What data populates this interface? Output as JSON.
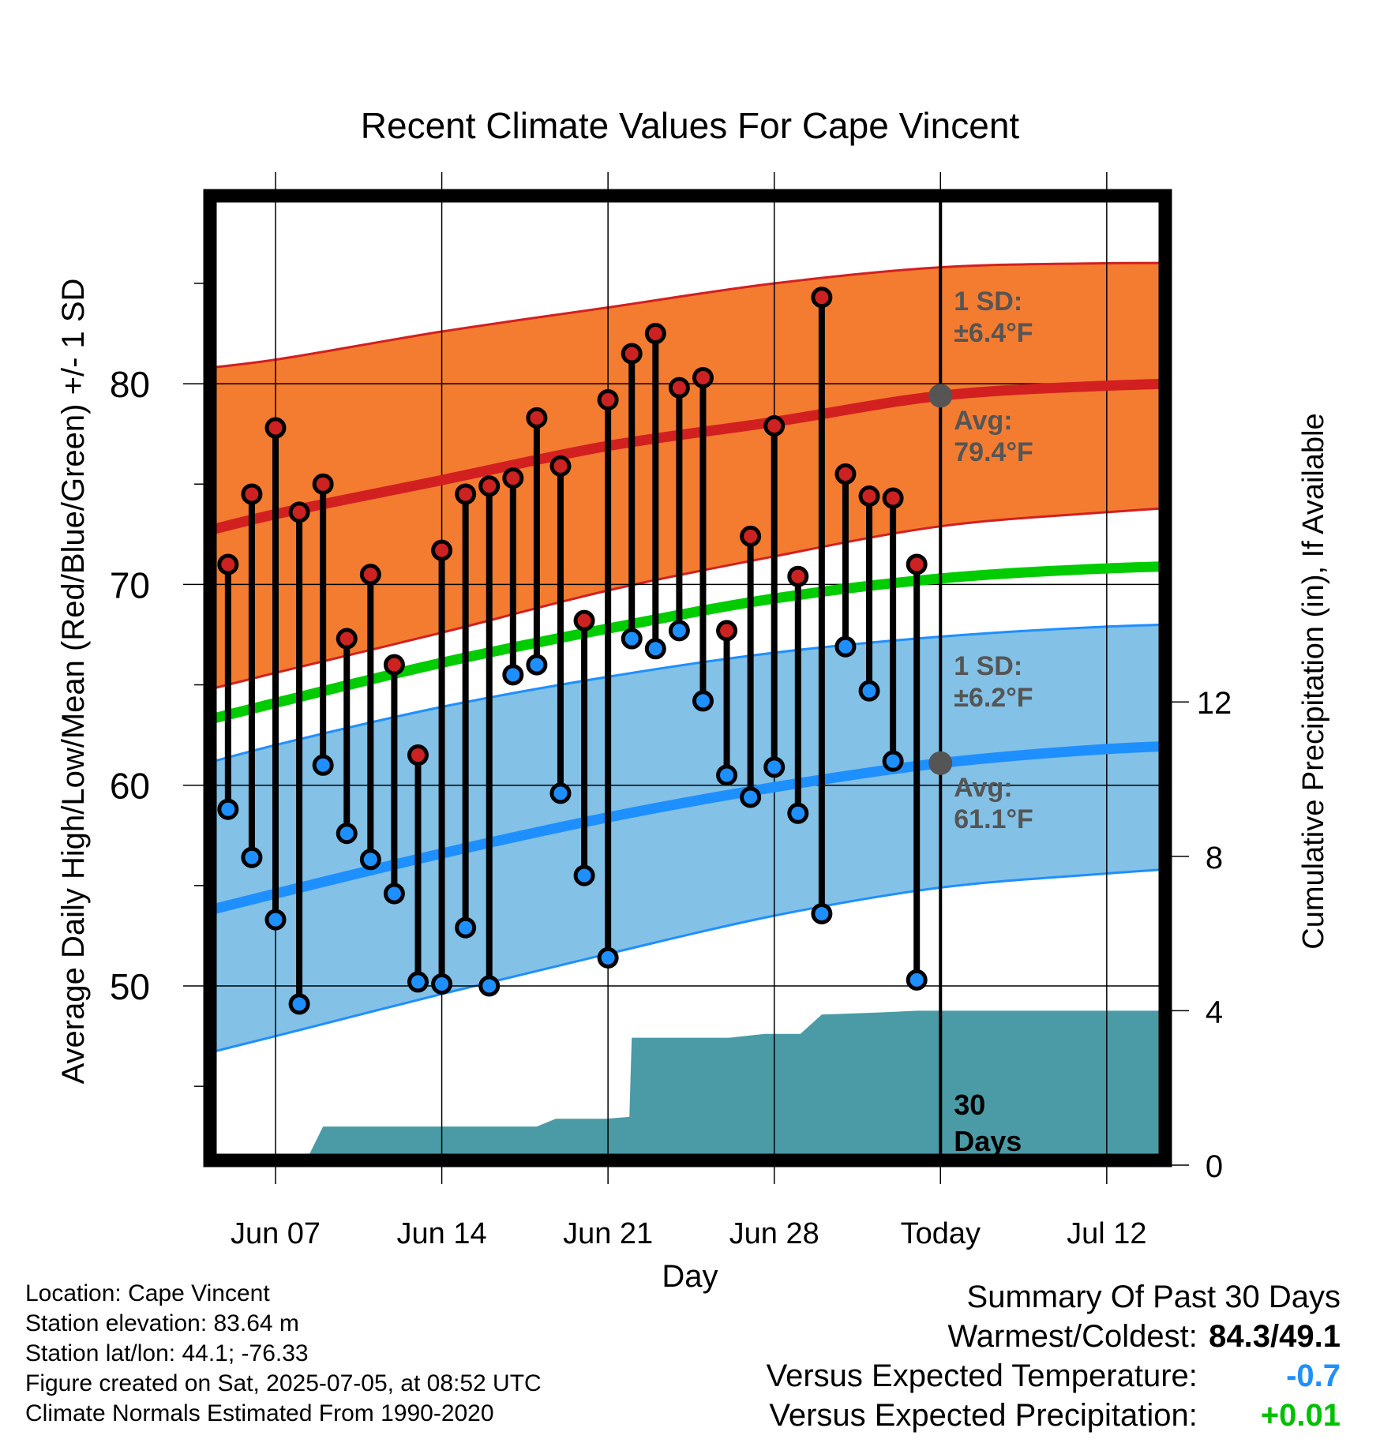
{
  "chart_data": {
    "type": "line",
    "title": "Recent Climate Values For Cape Vincent",
    "xlabel": "Day",
    "ylabel": "Average Daily High/Low/Mean (Red/Blue/Green) +/- 1 SD",
    "ylabel_right": "Cumulative Precipitation (in), If Available",
    "xlim": [
      -4.4,
      41.4
    ],
    "ylim": [
      41.0,
      89.2
    ],
    "y2lim": [
      0,
      20.0
    ],
    "xticks": [
      {
        "x": 0,
        "label": "Jun 07"
      },
      {
        "x": 7,
        "label": "Jun 14"
      },
      {
        "x": 14,
        "label": "Jun 21"
      },
      {
        "x": 21,
        "label": "Jun 28"
      },
      {
        "x": 28,
        "label": "Today"
      },
      {
        "x": 35,
        "label": "Jul 12"
      }
    ],
    "yticks": [
      50,
      60,
      70,
      80
    ],
    "y2ticks": [
      0,
      4,
      8,
      12
    ],
    "grid": true,
    "days": [
      -2,
      -1,
      0,
      1,
      2,
      3,
      4,
      5,
      6,
      7,
      8,
      9,
      10,
      11,
      12,
      13,
      14,
      15,
      16,
      17,
      18,
      19,
      20,
      21,
      22,
      23,
      24,
      25,
      26,
      27
    ],
    "daily_high": [
      71.0,
      74.5,
      77.8,
      73.6,
      75.0,
      67.3,
      70.5,
      66.0,
      61.5,
      71.7,
      74.5,
      74.9,
      75.3,
      78.3,
      75.9,
      68.2,
      79.2,
      81.5,
      82.5,
      79.8,
      80.3,
      67.7,
      72.4,
      77.9,
      70.4,
      84.3,
      75.5,
      74.4,
      74.3,
      71.0
    ],
    "daily_low": [
      58.8,
      56.4,
      53.3,
      49.1,
      61.0,
      57.6,
      56.3,
      54.6,
      50.2,
      50.1,
      52.9,
      50.0,
      65.5,
      66.0,
      59.6,
      55.5,
      51.4,
      67.3,
      66.8,
      67.7,
      64.2,
      60.5,
      59.4,
      60.9,
      58.6,
      53.6,
      66.9,
      64.7,
      61.2,
      50.3
    ],
    "series": [
      {
        "name": "Avg High",
        "x": [
          -4.4,
          0,
          7,
          14,
          21,
          28,
          35,
          41.4
        ],
        "values": [
          72.2,
          73.5,
          75.2,
          76.9,
          78.1,
          79.4,
          79.9,
          80.1
        ]
      },
      {
        "name": "High +1 SD",
        "x": [
          -4.4,
          0,
          7,
          14,
          21,
          28,
          35,
          41.4
        ],
        "values": [
          80.6,
          81.2,
          82.6,
          83.8,
          85.0,
          85.8,
          86.0,
          86.0
        ]
      },
      {
        "name": "High -1 SD",
        "x": [
          -4.4,
          0,
          7,
          14,
          21,
          28,
          35,
          41.4
        ],
        "values": [
          64.3,
          65.6,
          67.6,
          69.7,
          71.4,
          72.9,
          73.6,
          74.1
        ]
      },
      {
        "name": "Avg Mean",
        "x": [
          -4.4,
          0,
          7,
          14,
          21,
          28,
          35,
          41.4
        ],
        "values": [
          62.8,
          64.1,
          66.1,
          67.8,
          69.3,
          70.3,
          70.8,
          71.0
        ]
      },
      {
        "name": "Avg Low",
        "x": [
          -4.4,
          0,
          7,
          14,
          21,
          28,
          35,
          41.4
        ],
        "values": [
          53.3,
          54.6,
          56.6,
          58.4,
          59.9,
          61.1,
          61.8,
          62.1
        ]
      },
      {
        "name": "Low +1 SD",
        "x": [
          -4.4,
          0,
          7,
          14,
          21,
          28,
          35,
          41.4
        ],
        "values": [
          60.6,
          62.0,
          63.9,
          65.4,
          66.6,
          67.4,
          67.9,
          68.1
        ]
      },
      {
        "name": "Low -1 SD",
        "x": [
          -4.4,
          0,
          7,
          14,
          21,
          28,
          35,
          41.4
        ],
        "values": [
          46.2,
          47.5,
          49.6,
          51.6,
          53.5,
          54.9,
          55.6,
          56.1
        ]
      }
    ],
    "precip_cumulative": {
      "x": [
        1.2,
        2,
        6,
        11,
        11.8,
        13.9,
        14.9,
        15,
        19.1,
        20.6,
        21.9,
        22.1,
        23.0,
        25.3,
        27,
        28,
        41.4
      ],
      "values": [
        0,
        1.0,
        1.0,
        1.0,
        1.2,
        1.2,
        1.25,
        3.3,
        3.3,
        3.4,
        3.4,
        3.4,
        3.9,
        3.95,
        4.0,
        4.0,
        4.0
      ]
    },
    "annotations": {
      "high_sd_label": "1 SD:",
      "high_sd_value": "±6.4°F",
      "high_avg_label": "Avg:",
      "high_avg_value": "79.4°F",
      "low_sd_label": "1 SD:",
      "low_sd_value": "±6.2°F",
      "low_avg_label": "Avg:",
      "low_avg_value": "61.1°F",
      "window_line1": "30",
      "window_line2": "Days"
    },
    "today_x": 28,
    "colors": {
      "high_band": "#f47c30",
      "high_line": "#d22020",
      "mean_line": "#00cc00",
      "low_band": "#83c1e6",
      "low_line": "#1e8fff",
      "precip": "#4a9ba6",
      "marker_high": "#cc2222",
      "marker_low": "#1e8fff",
      "annotation": "#555555"
    }
  },
  "footer": {
    "location": "Location: Cape Vincent",
    "elevation": "Station elevation: 83.64 m",
    "latlon": "Station lat/lon: 44.1; -76.33",
    "created": "Figure created on Sat, 2025-07-05, at 08:52 UTC",
    "normals": "Climate Normals Estimated From 1990-2020"
  },
  "summary": {
    "title": "Summary Of Past 30 Days",
    "warmest_coldest_label": "Warmest/Coldest:",
    "warmest": "84.3",
    "separator": "/",
    "coldest": "49.1",
    "temp_label": "Versus Expected Temperature:",
    "temp_value": "-0.7",
    "precip_label": "Versus Expected Precipitation:",
    "precip_value": "+0.01"
  }
}
